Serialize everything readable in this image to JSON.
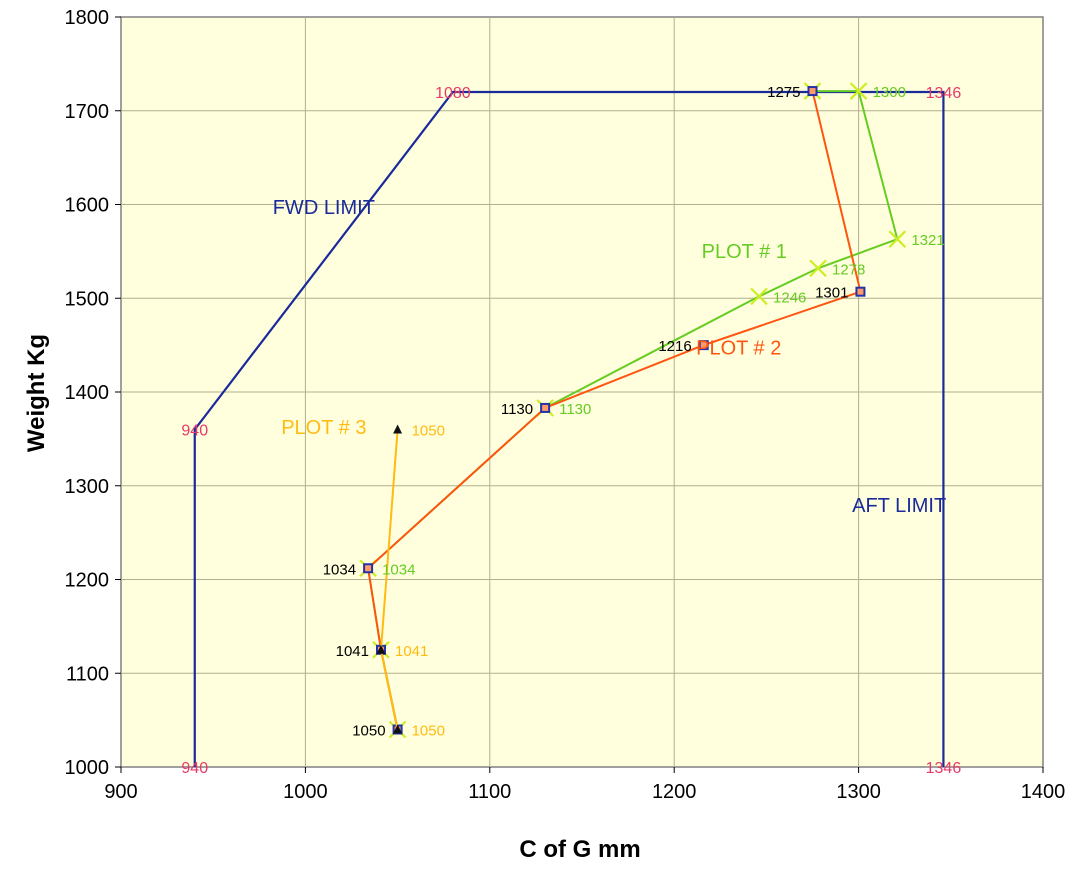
{
  "chart_data": {
    "type": "line",
    "xlabel": "C of G mm",
    "ylabel": "Weight Kg",
    "xlim": [
      900,
      1400
    ],
    "ylim": [
      1000,
      1800
    ],
    "x_ticks": [
      900,
      1000,
      1100,
      1200,
      1300,
      1400
    ],
    "y_ticks": [
      1000,
      1100,
      1200,
      1300,
      1400,
      1500,
      1600,
      1700,
      1800
    ],
    "grid": true,
    "plot_background": "#ffffdd",
    "envelope": {
      "color": "#1a2a9a",
      "points": [
        [
          940,
          1000
        ],
        [
          940,
          1360
        ],
        [
          1080,
          1720
        ],
        [
          1346,
          1720
        ],
        [
          1346,
          1000
        ]
      ],
      "vertex_labels": [
        {
          "text": "940",
          "x": 940,
          "y": 1000
        },
        {
          "text": "940",
          "x": 940,
          "y": 1360
        },
        {
          "text": "1080",
          "x": 1080,
          "y": 1720
        },
        {
          "text": "1346",
          "x": 1346,
          "y": 1720
        },
        {
          "text": "1346",
          "x": 1346,
          "y": 1000
        }
      ],
      "vertex_label_color": "#e83a6a",
      "limit_labels": [
        {
          "text": "FWD LIMIT",
          "x": 1010,
          "y": 1590
        },
        {
          "text": "AFT LIMIT",
          "x": 1322,
          "y": 1272
        }
      ]
    },
    "series": [
      {
        "name": "PLOT # 1",
        "color": "#66cc22",
        "marker": "x",
        "marker_color": "#ccee22",
        "x": [
          1050,
          1041,
          1034,
          1130,
          1246,
          1278,
          1321,
          1300,
          1275
        ],
        "y": [
          1040,
          1125,
          1212,
          1383,
          1502,
          1532,
          1563,
          1721,
          1721
        ],
        "point_labels": [
          {
            "text": "1130",
            "x": 1130,
            "y": 1383
          },
          {
            "text": "1034",
            "x": 1034,
            "y": 1212
          },
          {
            "text": "1246",
            "x": 1246,
            "y": 1502
          },
          {
            "text": "1278",
            "x": 1278,
            "y": 1532
          },
          {
            "text": "1321",
            "x": 1321,
            "y": 1563
          },
          {
            "text": "1300",
            "x": 1300,
            "y": 1721
          }
        ],
        "label_pos": {
          "x": 1238,
          "y": 1543
        }
      },
      {
        "name": "PLOT # 2",
        "color": "#ff5511",
        "marker": "square",
        "marker_color": "#2233aa",
        "x": [
          1050,
          1041,
          1034,
          1130,
          1216,
          1301,
          1275
        ],
        "y": [
          1040,
          1125,
          1212,
          1383,
          1450,
          1507,
          1721
        ],
        "point_labels": [
          {
            "text": "1050",
            "x": 1050,
            "y": 1040
          },
          {
            "text": "1041",
            "x": 1041,
            "y": 1125
          },
          {
            "text": "1034",
            "x": 1034,
            "y": 1212
          },
          {
            "text": "1130",
            "x": 1130,
            "y": 1383
          },
          {
            "text": "1216",
            "x": 1216,
            "y": 1450
          },
          {
            "text": "1301",
            "x": 1301,
            "y": 1507
          },
          {
            "text": "1275",
            "x": 1275,
            "y": 1721
          }
        ],
        "label_pos": {
          "x": 1235,
          "y": 1440
        }
      },
      {
        "name": "PLOT # 3",
        "color": "#ffbb11",
        "marker": "triangle",
        "marker_color": "#111111",
        "x": [
          1050,
          1041,
          1050
        ],
        "y": [
          1040,
          1125,
          1360
        ],
        "point_labels": [
          {
            "text": "1050",
            "x": 1050,
            "y": 1040
          },
          {
            "text": "1041",
            "x": 1041,
            "y": 1125
          },
          {
            "text": "1050",
            "x": 1050,
            "y": 1360
          }
        ],
        "label_pos": {
          "x": 1010,
          "y": 1355
        }
      }
    ]
  }
}
